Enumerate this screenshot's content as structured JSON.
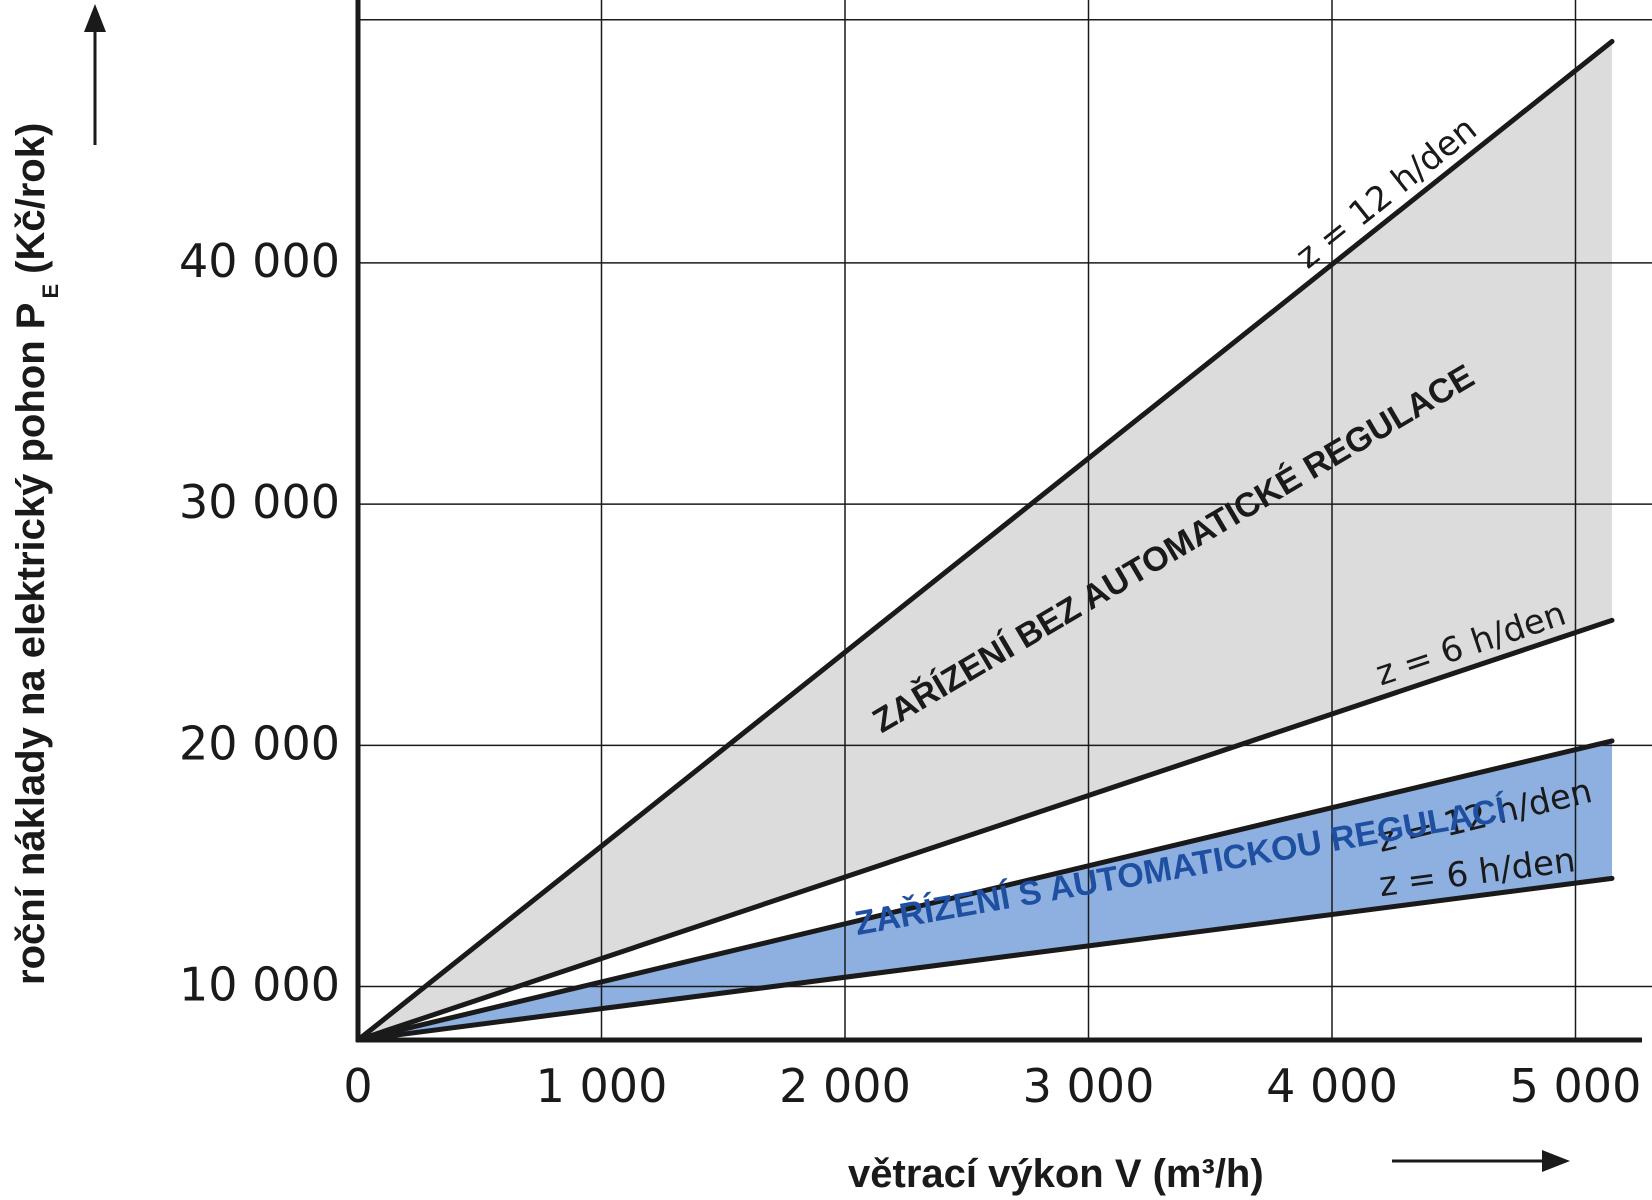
{
  "chart_data": {
    "type": "line",
    "xlabel": "větrací výkon V (m³/h)",
    "ylabel_main": "roční náklady na elektrický pohon P",
    "ylabel_sub": "E",
    "ylabel_unit": "(Kč/rok)",
    "x_ticks": [
      "0",
      "1 000",
      "2 000",
      "3 000",
      "4 000",
      "5 000"
    ],
    "y_ticks": [
      "10 000",
      "20 000",
      "30 000",
      "40 000"
    ],
    "xlim": [
      0,
      5150
    ],
    "ylim": [
      7700,
      50000
    ],
    "grid": true,
    "series": [
      {
        "name": "z = 12 h/den",
        "group": "bez",
        "x": [
          0,
          5150
        ],
        "y": [
          7700,
          49100
        ]
      },
      {
        "name": "z = 6 h/den",
        "group": "bez",
        "x": [
          0,
          5150
        ],
        "y": [
          7700,
          25100
        ]
      },
      {
        "name": "z = 12 h/den",
        "group": "s",
        "x": [
          0,
          5150
        ],
        "y": [
          7700,
          20100
        ]
      },
      {
        "name": "z = 6 h/den",
        "group": "s",
        "x": [
          0,
          5150
        ],
        "y": [
          7700,
          14400
        ]
      }
    ],
    "regions": [
      {
        "label": "ZAŘÍZENÍ BEZ AUTOMATICKÉ REGULACE",
        "between": [
          0,
          1
        ],
        "fill": "#dcdcdc",
        "text_color": "#1a1a1a"
      },
      {
        "label": "ZAŘÍZENÍ S AUTOMATICKOU REGULACÍ",
        "between": [
          2,
          3
        ],
        "fill": "#8db0e0",
        "text_color": "#1f4fa0"
      }
    ]
  }
}
